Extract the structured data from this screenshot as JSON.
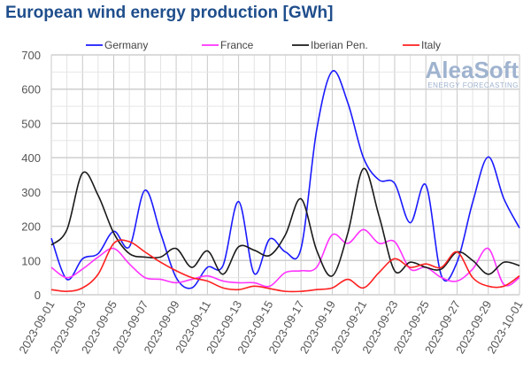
{
  "chart_data": {
    "type": "line",
    "title": "European wind energy production [GWh]",
    "xlabel": "",
    "ylabel": "",
    "ylim": [
      0,
      700
    ],
    "yticks": [
      0,
      100,
      200,
      300,
      400,
      500,
      600,
      700
    ],
    "grid": true,
    "legend_position": "top",
    "x": [
      "2023-09-01",
      "2023-09-02",
      "2023-09-03",
      "2023-09-04",
      "2023-09-05",
      "2023-09-06",
      "2023-09-07",
      "2023-09-08",
      "2023-09-09",
      "2023-09-10",
      "2023-09-11",
      "2023-09-12",
      "2023-09-13",
      "2023-09-14",
      "2023-09-15",
      "2023-09-16",
      "2023-09-17",
      "2023-09-18",
      "2023-09-19",
      "2023-09-20",
      "2023-09-21",
      "2023-09-22",
      "2023-09-23",
      "2023-09-24",
      "2023-09-25",
      "2023-09-26",
      "2023-09-27",
      "2023-09-28",
      "2023-09-29",
      "2023-09-30",
      "2023-10-01"
    ],
    "xtick_labels": [
      "2023-09-01",
      "2023-09-03",
      "2023-09-05",
      "2023-09-07",
      "2023-09-09",
      "2023-09-11",
      "2023-09-13",
      "2023-09-15",
      "2023-09-17",
      "2023-09-19",
      "2023-09-21",
      "2023-09-23",
      "2023-09-25",
      "2023-09-27",
      "2023-09-29",
      "2023-10-01"
    ],
    "series": [
      {
        "name": "Germany",
        "color": "#1a1aff",
        "values": [
          165,
          45,
          105,
          120,
          185,
          140,
          305,
          180,
          50,
          20,
          80,
          85,
          272,
          62,
          163,
          125,
          135,
          480,
          652,
          560,
          400,
          335,
          325,
          210,
          320,
          55,
          95,
          270,
          402,
          280,
          195
        ]
      },
      {
        "name": "France",
        "color": "#ff33ff",
        "values": [
          80,
          50,
          75,
          110,
          135,
          90,
          50,
          45,
          35,
          45,
          55,
          40,
          35,
          35,
          25,
          65,
          70,
          80,
          175,
          150,
          190,
          150,
          155,
          75,
          80,
          50,
          40,
          75,
          135,
          30,
          50
        ]
      },
      {
        "name": "Iberian Pen.",
        "color": "#1a1a1a",
        "values": [
          145,
          190,
          355,
          290,
          180,
          120,
          110,
          110,
          135,
          80,
          128,
          60,
          140,
          130,
          115,
          175,
          280,
          130,
          55,
          180,
          368,
          230,
          70,
          95,
          80,
          75,
          125,
          100,
          60,
          95,
          85
        ]
      },
      {
        "name": "Italy",
        "color": "#ff2020",
        "values": [
          15,
          10,
          20,
          60,
          150,
          155,
          125,
          95,
          70,
          50,
          40,
          20,
          15,
          25,
          18,
          10,
          10,
          15,
          20,
          45,
          20,
          65,
          105,
          80,
          90,
          80,
          125,
          50,
          25,
          25,
          55
        ]
      }
    ]
  },
  "watermark": {
    "brand": "AleaSoft",
    "tagline": "ENERGY FORECASTING"
  }
}
